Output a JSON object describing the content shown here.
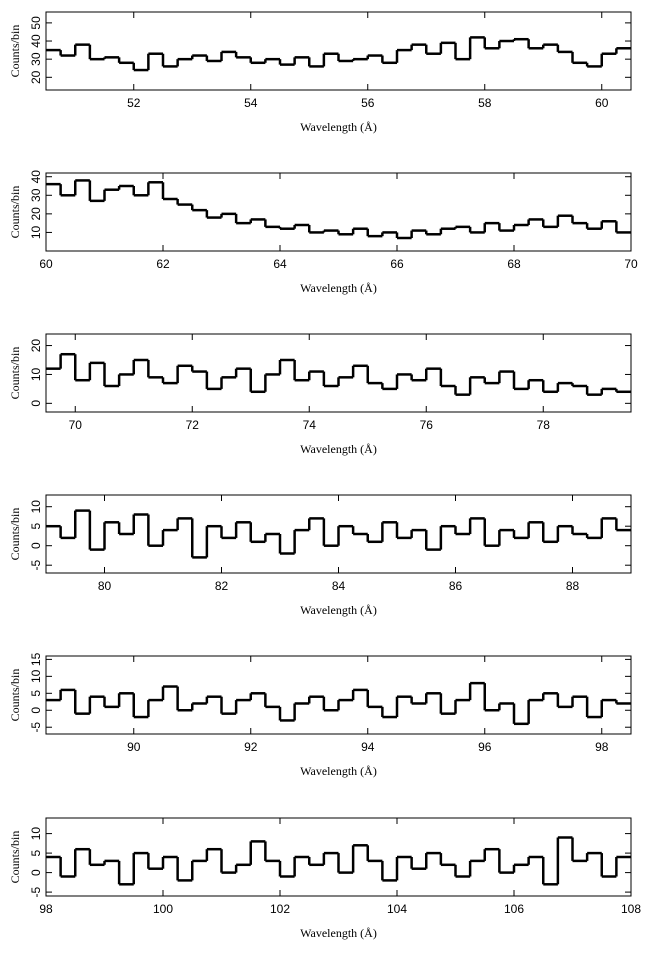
{
  "chart_data": [
    {
      "type": "histogram",
      "xlabel": "Wavelength (Å)",
      "ylabel": "Counts/bin",
      "color": "#000000",
      "xlim": [
        50.5,
        60.5
      ],
      "ylim": [
        13,
        56
      ],
      "xticks": [
        52,
        54,
        56,
        58,
        60
      ],
      "yticks": [
        20,
        30,
        40,
        50
      ],
      "bins": [
        50.5,
        50.75,
        51,
        51.25,
        51.5,
        51.75,
        52,
        52.25,
        52.5,
        52.75,
        53,
        53.25,
        53.5,
        53.75,
        54,
        54.25,
        54.5,
        54.75,
        55,
        55.25,
        55.5,
        55.75,
        56,
        56.25,
        56.5,
        56.75,
        57,
        57.25,
        57.5,
        57.75,
        58,
        58.25,
        58.5,
        58.75,
        59,
        59.25,
        59.5,
        59.75,
        60,
        60.25,
        60.5
      ],
      "values": [
        35,
        32,
        38,
        30,
        31,
        28,
        24,
        33,
        26,
        30,
        32,
        29,
        34,
        31,
        28,
        30,
        27,
        31,
        26,
        33,
        29,
        30,
        32,
        28,
        35,
        38,
        33,
        39,
        30,
        42,
        36,
        40,
        41,
        36,
        38,
        34,
        28,
        26,
        33,
        36
      ]
    },
    {
      "type": "histogram",
      "xlabel": "Wavelength (Å)",
      "ylabel": "Counts/bin",
      "color": "#000000",
      "xlim": [
        60,
        70
      ],
      "ylim": [
        0,
        42
      ],
      "xticks": [
        60,
        62,
        64,
        66,
        68,
        70
      ],
      "yticks": [
        10,
        20,
        30,
        40
      ],
      "bins": [
        60,
        60.25,
        60.5,
        60.75,
        61,
        61.25,
        61.5,
        61.75,
        62,
        62.25,
        62.5,
        62.75,
        63,
        63.25,
        63.5,
        63.75,
        64,
        64.25,
        64.5,
        64.75,
        65,
        65.25,
        65.5,
        65.75,
        66,
        66.25,
        66.5,
        66.75,
        67,
        67.25,
        67.5,
        67.75,
        68,
        68.25,
        68.5,
        68.75,
        69,
        69.25,
        69.5,
        69.75,
        70
      ],
      "values": [
        36,
        30,
        38,
        27,
        33,
        35,
        30,
        37,
        28,
        25,
        22,
        18,
        20,
        15,
        17,
        13,
        12,
        14,
        10,
        11,
        9,
        12,
        8,
        10,
        7,
        11,
        9,
        12,
        13,
        10,
        15,
        11,
        14,
        17,
        13,
        19,
        15,
        12,
        16,
        10
      ]
    },
    {
      "type": "histogram",
      "xlabel": "Wavelength (Å)",
      "ylabel": "Counts/bin",
      "color": "#000000",
      "xlim": [
        69.5,
        79.5
      ],
      "ylim": [
        -3,
        24
      ],
      "xticks": [
        70,
        72,
        74,
        76,
        78
      ],
      "yticks": [
        0,
        10,
        20
      ],
      "bins": [
        69.5,
        69.75,
        70,
        70.25,
        70.5,
        70.75,
        71,
        71.25,
        71.5,
        71.75,
        72,
        72.25,
        72.5,
        72.75,
        73,
        73.25,
        73.5,
        73.75,
        74,
        74.25,
        74.5,
        74.75,
        75,
        75.25,
        75.5,
        75.75,
        76,
        76.25,
        76.5,
        76.75,
        77,
        77.25,
        77.5,
        77.75,
        78,
        78.25,
        78.5,
        78.75,
        79,
        79.25,
        79.5
      ],
      "values": [
        12,
        17,
        8,
        14,
        6,
        10,
        15,
        9,
        7,
        13,
        11,
        5,
        9,
        12,
        4,
        10,
        15,
        8,
        11,
        6,
        9,
        13,
        7,
        5,
        10,
        8,
        12,
        6,
        3,
        9,
        7,
        11,
        5,
        8,
        4,
        7,
        6,
        3,
        5,
        4
      ]
    },
    {
      "type": "histogram",
      "xlabel": "Wavelength (Å)",
      "ylabel": "Counts/bin",
      "color": "#000000",
      "xlim": [
        79,
        89
      ],
      "ylim": [
        -7,
        13
      ],
      "xticks": [
        80,
        82,
        84,
        86,
        88
      ],
      "yticks": [
        -5,
        0,
        5,
        10
      ],
      "bins": [
        79,
        79.25,
        79.5,
        79.75,
        80,
        80.25,
        80.5,
        80.75,
        81,
        81.25,
        81.5,
        81.75,
        82,
        82.25,
        82.5,
        82.75,
        83,
        83.25,
        83.5,
        83.75,
        84,
        84.25,
        84.5,
        84.75,
        85,
        85.25,
        85.5,
        85.75,
        86,
        86.25,
        86.5,
        86.75,
        87,
        87.25,
        87.5,
        87.75,
        88,
        88.25,
        88.5,
        88.75,
        89
      ],
      "values": [
        5,
        2,
        9,
        -1,
        6,
        3,
        8,
        0,
        4,
        7,
        -3,
        5,
        2,
        6,
        1,
        3,
        -2,
        4,
        7,
        0,
        5,
        3,
        1,
        6,
        2,
        4,
        -1,
        5,
        3,
        7,
        0,
        4,
        2,
        6,
        1,
        5,
        3,
        2,
        7,
        4
      ]
    },
    {
      "type": "histogram",
      "xlabel": "Wavelength (Å)",
      "ylabel": "Counts/bin",
      "color": "#000000",
      "xlim": [
        88.5,
        98.5
      ],
      "ylim": [
        -7,
        16
      ],
      "xticks": [
        90,
        92,
        94,
        96,
        98
      ],
      "yticks": [
        -5,
        0,
        5,
        10,
        15
      ],
      "bins": [
        88.5,
        88.75,
        89,
        89.25,
        89.5,
        89.75,
        90,
        90.25,
        90.5,
        90.75,
        91,
        91.25,
        91.5,
        91.75,
        92,
        92.25,
        92.5,
        92.75,
        93,
        93.25,
        93.5,
        93.75,
        94,
        94.25,
        94.5,
        94.75,
        95,
        95.25,
        95.5,
        95.75,
        96,
        96.25,
        96.5,
        96.75,
        97,
        97.25,
        97.5,
        97.75,
        98,
        98.25,
        98.5
      ],
      "values": [
        3,
        6,
        -1,
        4,
        1,
        5,
        -2,
        3,
        7,
        0,
        2,
        4,
        -1,
        3,
        5,
        1,
        -3,
        2,
        4,
        0,
        3,
        6,
        1,
        -2,
        4,
        2,
        5,
        -1,
        3,
        8,
        0,
        2,
        -4,
        3,
        5,
        1,
        4,
        -2,
        3,
        2
      ]
    },
    {
      "type": "histogram",
      "xlabel": "Wavelength (Å)",
      "ylabel": "Counts/bin",
      "color": "#000000",
      "xlim": [
        98,
        108
      ],
      "ylim": [
        -6,
        14
      ],
      "xticks": [
        98,
        100,
        102,
        104,
        106,
        108
      ],
      "yticks": [
        -5,
        0,
        5,
        10
      ],
      "bins": [
        98,
        98.25,
        98.5,
        98.75,
        99,
        99.25,
        99.5,
        99.75,
        100,
        100.25,
        100.5,
        100.75,
        101,
        101.25,
        101.5,
        101.75,
        102,
        102.25,
        102.5,
        102.75,
        103,
        103.25,
        103.5,
        103.75,
        104,
        104.25,
        104.5,
        104.75,
        105,
        105.25,
        105.5,
        105.75,
        106,
        106.25,
        106.5,
        106.75,
        107,
        107.25,
        107.5,
        107.75,
        108
      ],
      "values": [
        4,
        -1,
        6,
        2,
        3,
        -3,
        5,
        1,
        4,
        -2,
        3,
        6,
        0,
        2,
        8,
        3,
        -1,
        4,
        2,
        5,
        0,
        7,
        3,
        -2,
        4,
        1,
        5,
        2,
        -1,
        3,
        6,
        0,
        2,
        4,
        -3,
        9,
        3,
        5,
        -1,
        4
      ]
    }
  ]
}
